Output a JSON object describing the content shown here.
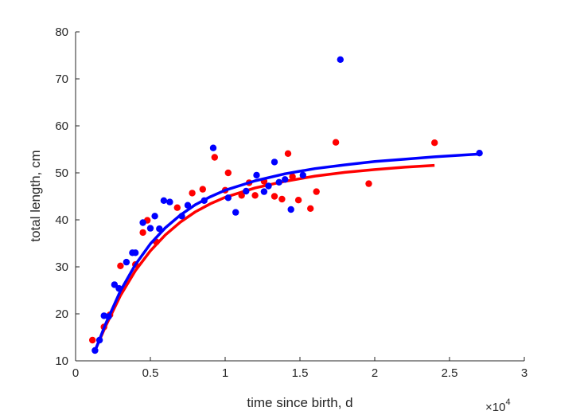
{
  "chart_data": {
    "type": "scatter",
    "title": "",
    "xlabel": "time since birth, d",
    "ylabel": "total length, cm",
    "xlim": [
      0,
      3
    ],
    "ylim": [
      10,
      80
    ],
    "x_scale_multiplier": "×10^4",
    "x_multiplier_base": "×10",
    "x_multiplier_exp": "4",
    "x_ticks": [
      0,
      0.5,
      1,
      1.5,
      2,
      2.5,
      3
    ],
    "x_tick_labels": [
      "0",
      "0.5",
      "1",
      "1.5",
      "2",
      "2.5",
      "3"
    ],
    "y_ticks": [
      10,
      20,
      30,
      40,
      50,
      60,
      70,
      80
    ],
    "y_tick_labels": [
      "10",
      "20",
      "30",
      "40",
      "50",
      "60",
      "70",
      "80"
    ],
    "grid": false,
    "series": [
      {
        "color": "#ff0000",
        "points": [
          [
            0.113,
            14.4
          ],
          [
            0.19,
            17.2
          ],
          [
            0.23,
            19.8
          ],
          [
            0.3,
            30.2
          ],
          [
            0.4,
            30.5
          ],
          [
            0.45,
            37.3
          ],
          [
            0.48,
            39.9
          ],
          [
            0.54,
            35.3
          ],
          [
            0.68,
            42.6
          ],
          [
            0.78,
            45.7
          ],
          [
            0.85,
            46.5
          ],
          [
            0.93,
            53.3
          ],
          [
            1.0,
            46.3
          ],
          [
            1.02,
            50.0
          ],
          [
            1.11,
            45.2
          ],
          [
            1.16,
            47.9
          ],
          [
            1.2,
            45.2
          ],
          [
            1.26,
            48.2
          ],
          [
            1.33,
            45.0
          ],
          [
            1.38,
            44.4
          ],
          [
            1.42,
            54.1
          ],
          [
            1.45,
            49.2
          ],
          [
            1.49,
            44.2
          ],
          [
            1.57,
            42.4
          ],
          [
            1.61,
            46.0
          ],
          [
            1.74,
            56.5
          ],
          [
            1.96,
            47.7
          ],
          [
            2.4,
            56.4
          ]
        ],
        "fit": [
          [
            0.13,
            12.2
          ],
          [
            0.2,
            17.3
          ],
          [
            0.3,
            23.9
          ],
          [
            0.4,
            29.2
          ],
          [
            0.5,
            33.4
          ],
          [
            0.6,
            36.8
          ],
          [
            0.7,
            39.5
          ],
          [
            0.8,
            41.7
          ],
          [
            0.9,
            43.4
          ],
          [
            1.0,
            44.8
          ],
          [
            1.2,
            46.8
          ],
          [
            1.4,
            48.2
          ],
          [
            1.6,
            49.3
          ],
          [
            1.8,
            50.1
          ],
          [
            2.0,
            50.7
          ],
          [
            2.2,
            51.2
          ],
          [
            2.4,
            51.6
          ]
        ]
      },
      {
        "color": "#0000ff",
        "points": [
          [
            0.13,
            12.2
          ],
          [
            0.16,
            14.4
          ],
          [
            0.19,
            19.6
          ],
          [
            0.22,
            19.4
          ],
          [
            0.26,
            26.2
          ],
          [
            0.29,
            25.4
          ],
          [
            0.34,
            31.0
          ],
          [
            0.38,
            33.0
          ],
          [
            0.4,
            33.0
          ],
          [
            0.45,
            39.4
          ],
          [
            0.5,
            38.2
          ],
          [
            0.53,
            40.8
          ],
          [
            0.56,
            38.1
          ],
          [
            0.59,
            44.1
          ],
          [
            0.63,
            43.8
          ],
          [
            0.71,
            40.8
          ],
          [
            0.75,
            43.1
          ],
          [
            0.86,
            44.1
          ],
          [
            0.92,
            55.3
          ],
          [
            1.02,
            44.7
          ],
          [
            1.07,
            41.6
          ],
          [
            1.14,
            46.1
          ],
          [
            1.21,
            49.5
          ],
          [
            1.26,
            46.0
          ],
          [
            1.29,
            47.2
          ],
          [
            1.33,
            52.3
          ],
          [
            1.36,
            48.0
          ],
          [
            1.4,
            48.6
          ],
          [
            1.44,
            42.2
          ],
          [
            1.52,
            49.5
          ],
          [
            1.77,
            74.1
          ],
          [
            2.7,
            54.2
          ]
        ],
        "fit": [
          [
            0.13,
            12.1
          ],
          [
            0.2,
            17.8
          ],
          [
            0.3,
            24.9
          ],
          [
            0.4,
            30.5
          ],
          [
            0.5,
            34.9
          ],
          [
            0.6,
            38.3
          ],
          [
            0.7,
            41.0
          ],
          [
            0.8,
            43.2
          ],
          [
            0.9,
            44.9
          ],
          [
            1.0,
            46.3
          ],
          [
            1.2,
            48.3
          ],
          [
            1.4,
            49.8
          ],
          [
            1.6,
            50.9
          ],
          [
            1.8,
            51.7
          ],
          [
            2.0,
            52.4
          ],
          [
            2.2,
            52.9
          ],
          [
            2.4,
            53.4
          ],
          [
            2.7,
            54.0
          ]
        ]
      }
    ]
  }
}
